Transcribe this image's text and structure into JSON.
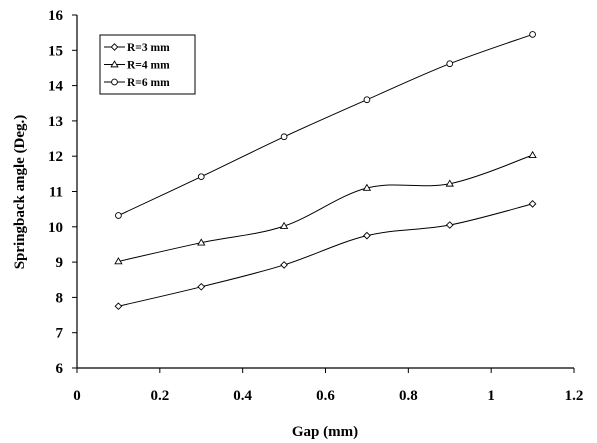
{
  "chart_data": {
    "type": "line",
    "title": "",
    "xlabel": "Gap (mm)",
    "ylabel": "Springback angle (Deg.)",
    "xlim": [
      0,
      1.2
    ],
    "ylim": [
      6,
      16
    ],
    "xticks": [
      0,
      0.2,
      0.4,
      0.6,
      0.8,
      1,
      1.2
    ],
    "xtick_labels": [
      "0",
      "0.2",
      "0.4",
      "0.6",
      "0.8",
      "1",
      "1.2"
    ],
    "yticks": [
      6,
      7,
      8,
      9,
      10,
      11,
      12,
      13,
      14,
      15,
      16
    ],
    "ytick_labels": [
      "6",
      "7",
      "8",
      "9",
      "10",
      "11",
      "12",
      "13",
      "14",
      "15",
      "16"
    ],
    "grid": false,
    "legend_position": "top-left",
    "x": [
      0.1,
      0.3,
      0.5,
      0.7,
      0.9,
      1.1
    ],
    "series": [
      {
        "name": "R=3 mm",
        "marker": "diamond",
        "values": [
          7.75,
          8.3,
          8.92,
          9.75,
          10.05,
          10.65
        ]
      },
      {
        "name": "R=4 mm",
        "marker": "triangle",
        "values": [
          9.02,
          9.55,
          10.02,
          11.1,
          11.22,
          12.03
        ]
      },
      {
        "name": "R=6 mm",
        "marker": "circle",
        "values": [
          10.32,
          11.42,
          12.55,
          13.6,
          14.62,
          15.45
        ]
      }
    ]
  }
}
